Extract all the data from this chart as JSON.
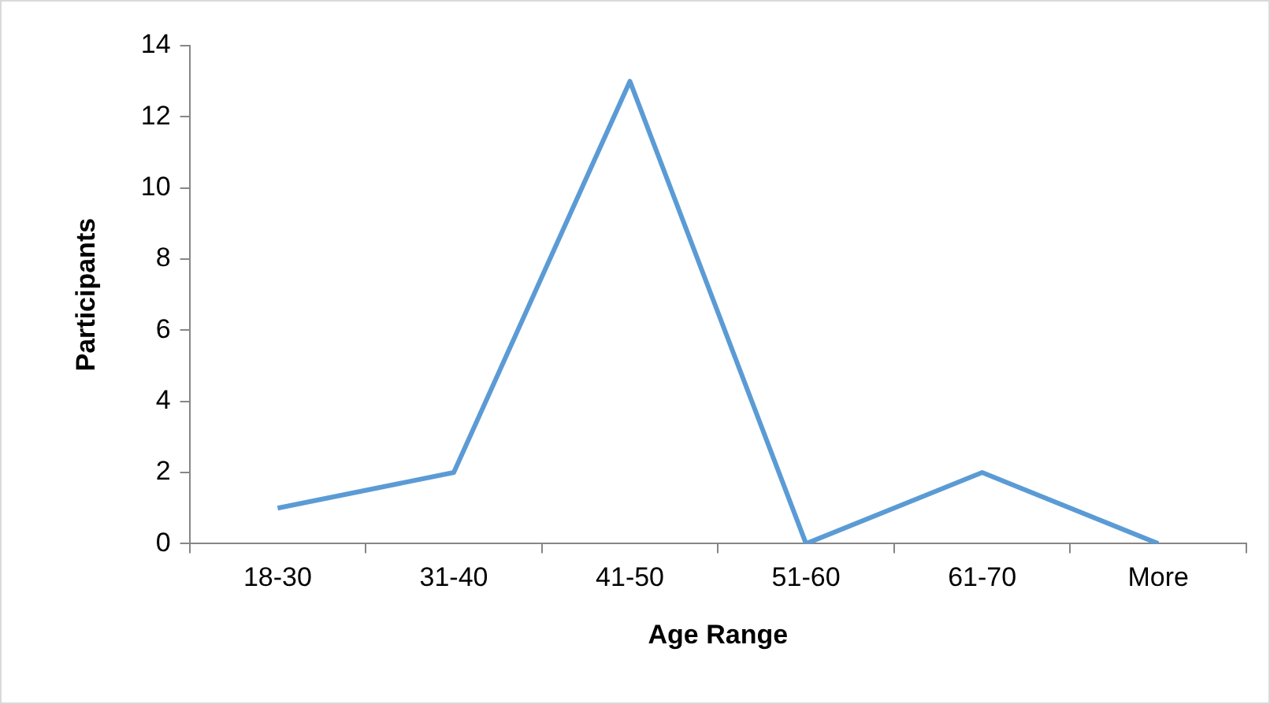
{
  "chart_data": {
    "type": "line",
    "xlabel": "Age Range",
    "ylabel": "Participants",
    "categories": [
      "18-30",
      "31-40",
      "41-50",
      "51-60",
      "61-70",
      "More"
    ],
    "series": [
      {
        "color": "#5b9bd5",
        "values": [
          1,
          2,
          13,
          0,
          2,
          0
        ]
      }
    ],
    "ylim": [
      0,
      14
    ],
    "yticks": [
      0,
      2,
      4,
      6,
      8,
      10,
      12,
      14
    ],
    "marker": "none"
  }
}
